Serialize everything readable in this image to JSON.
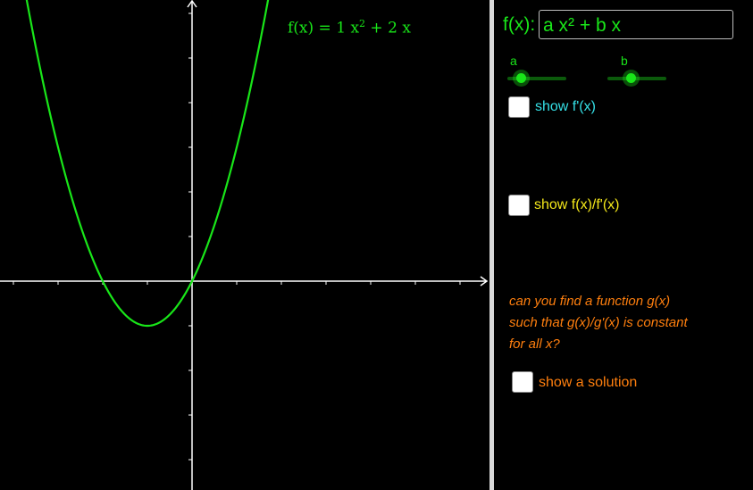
{
  "graph": {
    "formula_prefix": "f(x) = ",
    "coef_a": "1",
    "x_sq": "x",
    "sup2": "2",
    "plus": " + ",
    "coef_b": "2",
    "x_lin": " x",
    "curve_color": "#19e619",
    "axis_color": "#ffffff"
  },
  "function_input": {
    "label": "f(x):",
    "value": "a x² + b x"
  },
  "sliders": [
    {
      "name": "a",
      "value": 1
    },
    {
      "name": "b",
      "value": 2
    }
  ],
  "checkboxes": {
    "derivative": {
      "label": "show f'(x)",
      "color": "#35e0e6"
    },
    "ratio": {
      "label": "show f(x)/f'(x)",
      "color": "#f2e61a"
    },
    "solution": {
      "label": "show a solution",
      "color": "#ff7f0e"
    }
  },
  "question": {
    "line1": "can you find a function g(x)",
    "line2": "such that g(x)/g'(x) is constant",
    "line3": "for all x?"
  }
}
